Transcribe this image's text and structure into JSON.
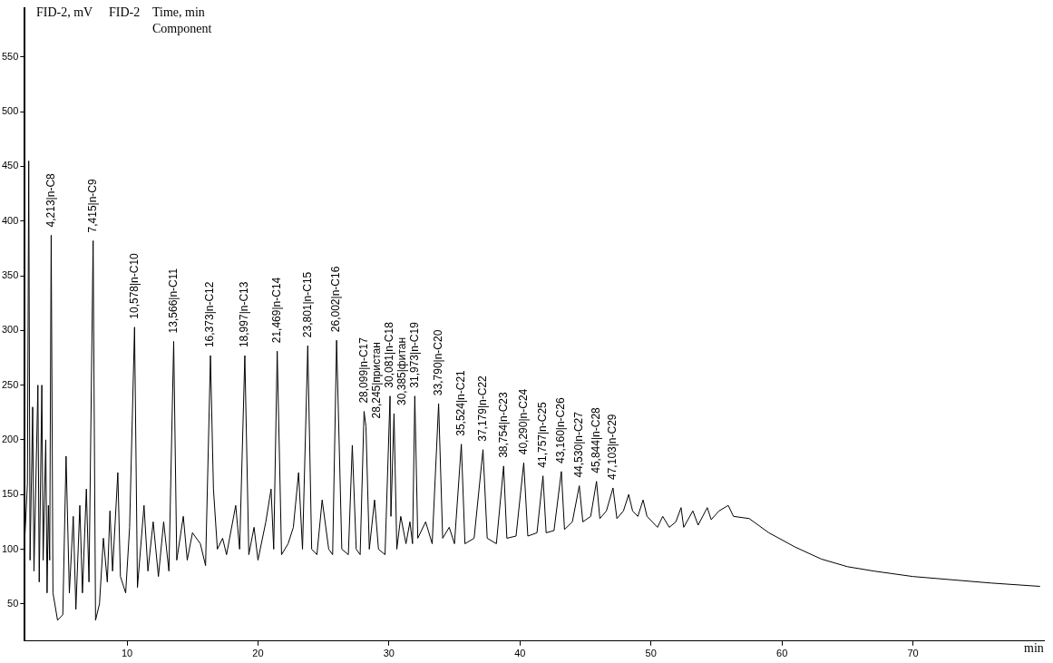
{
  "chart_data": {
    "type": "line",
    "ylabel": "FID-2, mV",
    "xlabel": "min",
    "annotations": [
      "Time, min",
      "Component",
      {
        "text": "4,213|n-C8",
        "x": 4.213,
        "y": 387
      },
      {
        "text": "7,415|n-C9",
        "x": 7.415,
        "y": 382
      },
      {
        "text": "10,578|n-C10",
        "x": 10.578,
        "y": 303
      },
      {
        "text": "13,566|n-C11",
        "x": 13.566,
        "y": 290
      },
      {
        "text": "16,373|n-C12",
        "x": 16.373,
        "y": 277
      },
      {
        "text": "18,997|n-C13",
        "x": 18.997,
        "y": 277
      },
      {
        "text": "21,469|n-C14",
        "x": 21.469,
        "y": 281
      },
      {
        "text": "23,801|n-C15",
        "x": 23.801,
        "y": 286
      },
      {
        "text": "26,002|n-C16",
        "x": 26.002,
        "y": 291
      },
      {
        "text": "28,099|n-C17",
        "x": 28.099,
        "y": 226
      },
      {
        "text": "28,245|пристан",
        "x": 28.245,
        "y": 212
      },
      {
        "text": "30,081|n-C18",
        "x": 30.081,
        "y": 240
      },
      {
        "text": "30,385|фитан",
        "x": 30.385,
        "y": 224
      },
      {
        "text": "31,973|n-C19",
        "x": 31.973,
        "y": 240
      },
      {
        "text": "33,790|n-C20",
        "x": 33.79,
        "y": 233
      },
      {
        "text": "35,524|n-C21",
        "x": 35.524,
        "y": 196
      },
      {
        "text": "37,179|n-C22",
        "x": 37.179,
        "y": 191
      },
      {
        "text": "38,754|n-C23",
        "x": 38.754,
        "y": 176
      },
      {
        "text": "40,290|n-C24",
        "x": 40.29,
        "y": 179
      },
      {
        "text": "41,757|n-C25",
        "x": 41.757,
        "y": 167
      },
      {
        "text": "43,160|n-C26",
        "x": 43.16,
        "y": 171
      },
      {
        "text": "44,530|n-C27",
        "x": 44.53,
        "y": 158
      },
      {
        "text": "45,844|n-C28",
        "x": 45.844,
        "y": 162
      },
      {
        "text": "47,103|n-C29",
        "x": 47.103,
        "y": 156
      }
    ],
    "xlim": [
      2.2,
      80
    ],
    "xticks": [
      10,
      20,
      30,
      40,
      50,
      60,
      70
    ],
    "ylim": [
      16,
      595
    ],
    "yticks": [
      50,
      100,
      150,
      200,
      250,
      300,
      350,
      400,
      450,
      500,
      550
    ],
    "grid": false,
    "legend": false,
    "marker": "none",
    "line_style": "solid",
    "series": [
      {
        "name": "FID-2",
        "color": "#000000",
        "x": [
          2.2,
          2.4,
          2.5,
          2.6,
          2.8,
          2.9,
          3.2,
          3.3,
          3.5,
          3.6,
          3.8,
          3.9,
          4.0,
          4.1,
          4.213,
          4.35,
          4.7,
          5.1,
          5.35,
          5.6,
          5.9,
          6.1,
          6.4,
          6.6,
          6.9,
          7.1,
          7.415,
          7.6,
          7.9,
          8.2,
          8.5,
          8.7,
          8.9,
          9.3,
          9.5,
          9.9,
          10.2,
          10.578,
          10.8,
          11.3,
          11.6,
          12.0,
          12.4,
          12.8,
          13.2,
          13.566,
          13.8,
          14.3,
          14.6,
          15.0,
          15.6,
          16.0,
          16.373,
          16.6,
          16.9,
          17.3,
          17.6,
          18.3,
          18.6,
          18.997,
          19.3,
          19.7,
          20.0,
          20.6,
          21.0,
          21.2,
          21.469,
          21.8,
          22.3,
          22.7,
          23.1,
          23.4,
          23.801,
          24.1,
          24.5,
          24.9,
          25.4,
          25.7,
          26.002,
          26.4,
          26.9,
          27.2,
          27.5,
          27.8,
          28.099,
          28.245,
          28.5,
          28.9,
          29.2,
          29.7,
          30.081,
          30.15,
          30.385,
          30.6,
          30.9,
          31.3,
          31.6,
          31.8,
          31.973,
          32.2,
          32.8,
          33.3,
          33.79,
          34.1,
          34.6,
          35.0,
          35.524,
          35.8,
          36.5,
          37.179,
          37.5,
          38.2,
          38.754,
          39.0,
          39.7,
          40.29,
          40.6,
          41.3,
          41.757,
          42.0,
          42.6,
          43.16,
          43.4,
          44.0,
          44.53,
          44.8,
          45.4,
          45.844,
          46.1,
          46.6,
          47.103,
          47.4,
          47.9,
          48.3,
          48.6,
          49.0,
          49.4,
          49.7,
          50.5,
          50.9,
          51.4,
          51.9,
          52.3,
          52.5,
          53.2,
          53.6,
          54.3,
          54.6,
          55.2,
          55.9,
          56.3,
          57.5,
          59,
          61,
          63,
          65,
          67,
          70,
          73,
          76,
          79.7
        ],
        "values": [
          110,
          160,
          455,
          90,
          230,
          80,
          250,
          70,
          250,
          90,
          200,
          60,
          140,
          90,
          387,
          60,
          35,
          40,
          185,
          60,
          130,
          45,
          140,
          60,
          155,
          70,
          382,
          35,
          50,
          110,
          70,
          135,
          80,
          170,
          75,
          60,
          120,
          303,
          65,
          140,
          80,
          125,
          75,
          125,
          80,
          290,
          90,
          130,
          90,
          115,
          105,
          85,
          277,
          155,
          100,
          110,
          95,
          140,
          100,
          277,
          95,
          120,
          90,
          125,
          155,
          100,
          281,
          95,
          105,
          120,
          170,
          100,
          286,
          100,
          95,
          145,
          100,
          95,
          291,
          100,
          95,
          195,
          100,
          95,
          226,
          212,
          100,
          145,
          100,
          95,
          240,
          130,
          224,
          100,
          130,
          105,
          125,
          105,
          240,
          110,
          125,
          105,
          233,
          110,
          120,
          105,
          196,
          105,
          110,
          191,
          110,
          105,
          176,
          110,
          112,
          179,
          112,
          115,
          167,
          115,
          117,
          171,
          118,
          125,
          158,
          125,
          130,
          162,
          128,
          135,
          156,
          128,
          135,
          150,
          135,
          130,
          145,
          130,
          120,
          130,
          120,
          125,
          138,
          120,
          135,
          122,
          138,
          127,
          135,
          140,
          130,
          128,
          115,
          102,
          91,
          84,
          80,
          75,
          72,
          69,
          66
        ]
      }
    ]
  }
}
